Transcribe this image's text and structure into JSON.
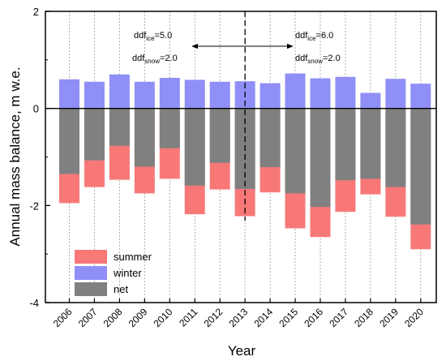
{
  "chart_data": {
    "type": "bar",
    "xlabel": "Year",
    "ylabel": "Annual mass balance, m w.e.",
    "ylim": [
      -4,
      2
    ],
    "yticks": [
      "-4",
      "-2",
      "0",
      "2"
    ],
    "categories": [
      "2006",
      "2007",
      "2008",
      "2009",
      "2010",
      "2011",
      "2012",
      "2013",
      "2014",
      "2015",
      "2016",
      "2017",
      "2018",
      "2019",
      "2020"
    ],
    "series": [
      {
        "name": "summer",
        "color": "#f87878",
        "values": [
          -1.95,
          -1.62,
          -1.47,
          -1.75,
          -1.45,
          -2.18,
          -1.67,
          -2.22,
          -1.73,
          -2.47,
          -2.65,
          -2.13,
          -1.77,
          -2.23,
          -2.9
        ]
      },
      {
        "name": "winter",
        "color": "#8f8ff7",
        "values": [
          0.6,
          0.55,
          0.7,
          0.55,
          0.63,
          0.59,
          0.55,
          0.56,
          0.52,
          0.72,
          0.62,
          0.65,
          0.32,
          0.61,
          0.51
        ]
      },
      {
        "name": "net",
        "color": "#808080",
        "values": [
          -1.35,
          -1.07,
          -0.77,
          -1.2,
          -0.82,
          -1.59,
          -1.12,
          -1.66,
          -1.21,
          -1.75,
          -2.03,
          -1.48,
          -1.45,
          -1.62,
          -2.39
        ]
      }
    ],
    "legend": {
      "position": "bottom-left",
      "entries": [
        "summer",
        "winter",
        "net"
      ]
    },
    "annotations": {
      "left": {
        "ice_label": "ddf",
        "ice_sub": "ice",
        "ice_value": "=5.0",
        "snow_label": "ddf",
        "snow_sub": "snow",
        "snow_value": "=2.0"
      },
      "right": {
        "ice_label": "ddf",
        "ice_sub": "ice",
        "ice_value": "=6.0",
        "snow_label": "ddf",
        "snow_sub": "snow",
        "snow_value": "=2.0"
      },
      "divider_after_category": "2013"
    }
  }
}
